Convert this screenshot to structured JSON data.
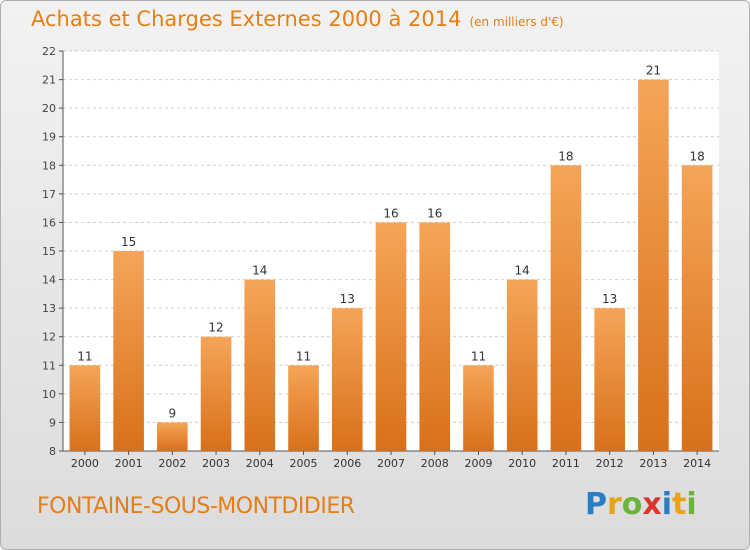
{
  "title": "Achats et Charges Externes 2000 à 2014",
  "unit_label": "(en milliers d'€)",
  "location": "FONTAINE-SOUS-MONTDIDIER",
  "logo": {
    "letters": [
      "P",
      "r",
      "o",
      "x",
      "i",
      "t",
      "i"
    ],
    "colors": [
      "#2a7dc2",
      "#e9a31b",
      "#6bb33a",
      "#d9352b",
      "#2a7dc2",
      "#e9a31b",
      "#6bb33a"
    ]
  },
  "colors": {
    "accent": "#e57e14",
    "bar_top": "#f5a558",
    "bar_bottom": "#d8701a"
  },
  "chart_data": {
    "type": "bar",
    "categories": [
      "2000",
      "2001",
      "2002",
      "2003",
      "2004",
      "2005",
      "2006",
      "2007",
      "2008",
      "2009",
      "2010",
      "2011",
      "2012",
      "2013",
      "2014"
    ],
    "values": [
      11,
      15,
      9,
      12,
      14,
      11,
      13,
      16,
      16,
      11,
      14,
      18,
      13,
      21,
      18
    ],
    "ylim": [
      8,
      22
    ],
    "yticks": [
      8,
      9,
      10,
      11,
      12,
      13,
      14,
      15,
      16,
      17,
      18,
      19,
      20,
      21,
      22
    ],
    "grid": true,
    "data_labels": true
  }
}
